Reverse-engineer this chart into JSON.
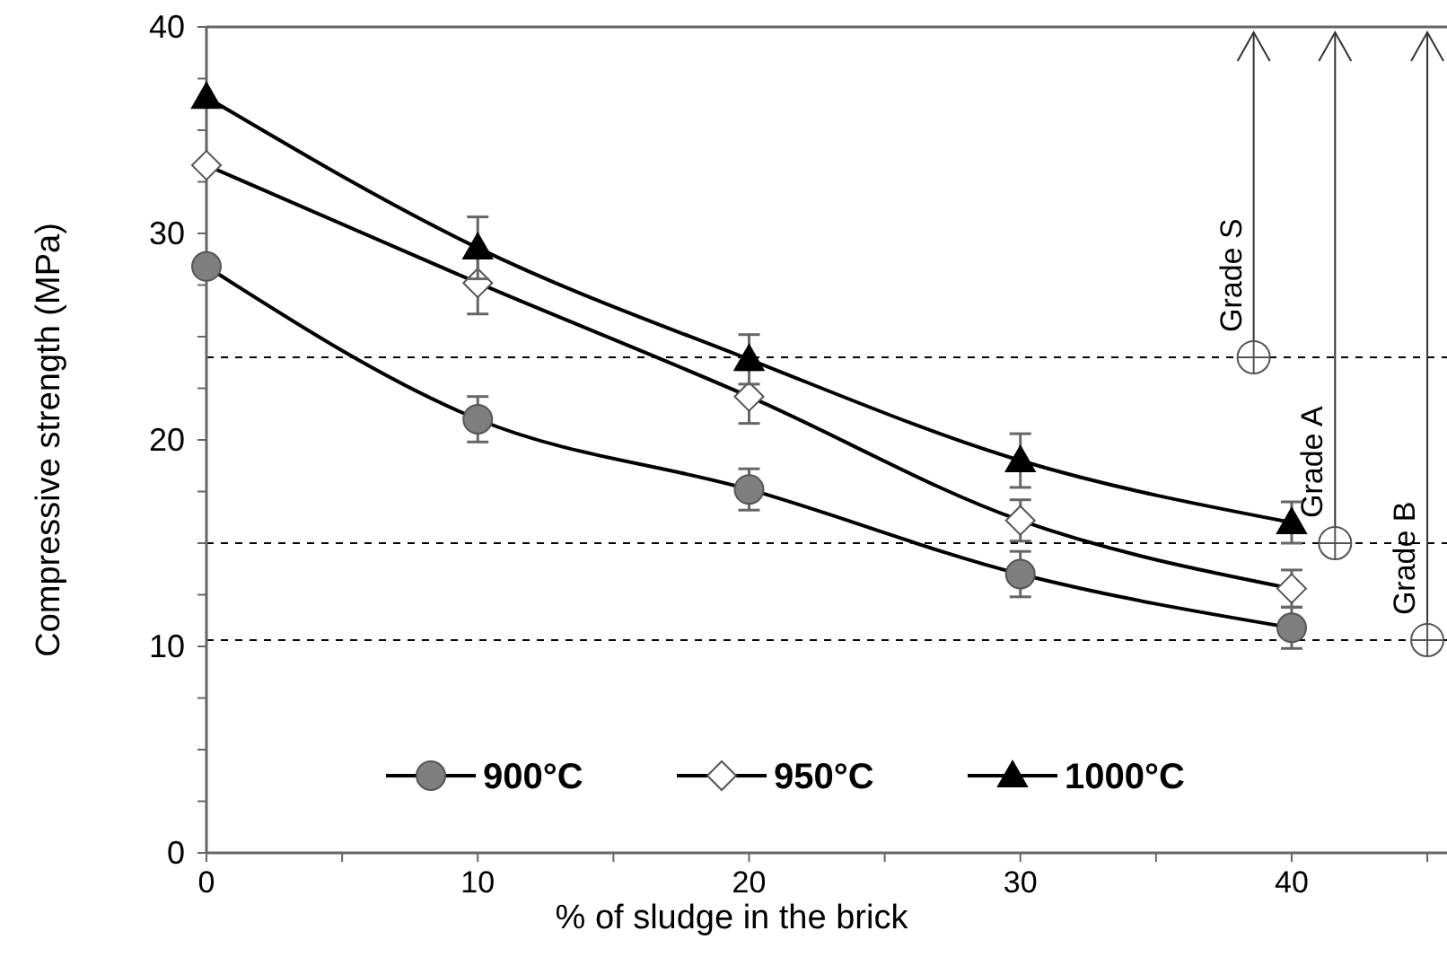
{
  "chart_data": {
    "type": "line",
    "xlabel": "% of sludge in the brick",
    "ylabel": "Compressive strength (MPa)",
    "x": [
      0,
      10,
      20,
      30,
      40
    ],
    "series": [
      {
        "name": "900°C",
        "color": "#7f7f7f",
        "marker": "circle",
        "values": [
          28.4,
          21.0,
          17.6,
          13.5,
          10.9
        ],
        "errors": [
          null,
          1.1,
          1.0,
          1.1,
          1.0
        ]
      },
      {
        "name": "950°C",
        "color": "#ffffff",
        "marker": "diamond",
        "values": [
          33.3,
          27.6,
          22.1,
          16.1,
          12.8
        ],
        "errors": [
          null,
          1.5,
          1.3,
          1.0,
          0.9
        ]
      },
      {
        "name": "1000°C",
        "color": "#000000",
        "marker": "triangle",
        "values": [
          36.6,
          29.3,
          23.9,
          19.0,
          16.0
        ],
        "errors": [
          null,
          1.5,
          1.2,
          1.3,
          1.0
        ]
      }
    ],
    "xlim": [
      0,
      46
    ],
    "ylim": [
      0,
      40
    ],
    "xticks": [
      0,
      {
        "value": 5,
        "label": null
      },
      10,
      {
        "value": 15,
        "label": null
      },
      20,
      {
        "value": 25,
        "label": null
      },
      30,
      {
        "value": 35,
        "label": null
      },
      40,
      {
        "value": 45,
        "label": null
      }
    ],
    "yticks": [
      0,
      {
        "value": 2.5,
        "label": null
      },
      {
        "value": 5,
        "label": null
      },
      {
        "value": 7.5,
        "label": null
      },
      10,
      {
        "value": 12.5,
        "label": null
      },
      {
        "value": 15,
        "label": null
      },
      {
        "value": 17.5,
        "label": null
      },
      20,
      {
        "value": 22.5,
        "label": null
      },
      {
        "value": 25,
        "label": null
      },
      {
        "value": 27.5,
        "label": null
      },
      30,
      {
        "value": 32.5,
        "label": null
      },
      {
        "value": 35,
        "label": null
      },
      {
        "value": 37.5,
        "label": null
      },
      40
    ],
    "ref_lines": [
      {
        "axis": "y",
        "value": 24,
        "line_style": "dashed",
        "color": "#000000"
      },
      {
        "axis": "y",
        "value": 15,
        "line_style": "dashed",
        "color": "#000000"
      },
      {
        "axis": "y",
        "value": 10.3,
        "line_style": "dashed",
        "color": "#000000"
      }
    ],
    "annotations": [
      {
        "text": "Grade S",
        "x": 38.6,
        "y": 24
      },
      {
        "text": "Grade A",
        "x": 41.6,
        "y": 15
      },
      {
        "text": "Grade B",
        "x": 45.0,
        "y": 10.3
      }
    ],
    "legend": "bottom",
    "grid": false,
    "line_style": "solid"
  }
}
